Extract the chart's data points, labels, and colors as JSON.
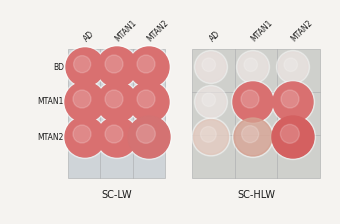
{
  "fig_width": 3.4,
  "fig_height": 2.24,
  "dpi": 100,
  "bg_color": "#f5f3f0",
  "panel_left_bg": "#cfd4d8",
  "panel_right_bg": "#cfd0cc",
  "col_labels_left": [
    "AD",
    "MTAN1",
    "MTAN2"
  ],
  "col_labels_right": [
    "AD",
    "MTAN1",
    "MTAN2"
  ],
  "row_labels": [
    "BD",
    "MTAN1",
    "MTAN2"
  ],
  "left_panel_label": "SC-LW",
  "right_panel_label": "SC-HLW",
  "cell_bg": "#e8e4de",
  "lw_dots": [
    [
      {
        "color": "#d97070",
        "alpha": 1.0,
        "size": 0.38
      },
      {
        "color": "#d97070",
        "alpha": 1.0,
        "size": 0.4
      },
      {
        "color": "#d97070",
        "alpha": 1.0,
        "size": 0.4
      }
    ],
    [
      {
        "color": "#d97070",
        "alpha": 1.0,
        "size": 0.4
      },
      {
        "color": "#d97070",
        "alpha": 1.0,
        "size": 0.4
      },
      {
        "color": "#d97070",
        "alpha": 1.0,
        "size": 0.4
      }
    ],
    [
      {
        "color": "#d97070",
        "alpha": 1.0,
        "size": 0.4
      },
      {
        "color": "#d97070",
        "alpha": 1.0,
        "size": 0.4
      },
      {
        "color": "#d47272",
        "alpha": 1.0,
        "size": 0.42
      }
    ]
  ],
  "hlw_dots": [
    [
      {
        "color": "#e8dbd8",
        "alpha": 0.5,
        "size": 0.3
      },
      {
        "color": "#e8dbd8",
        "alpha": 0.4,
        "size": 0.3
      },
      {
        "color": "#e8dbd8",
        "alpha": 0.4,
        "size": 0.3
      }
    ],
    [
      {
        "color": "#e8dbd8",
        "alpha": 0.4,
        "size": 0.3
      },
      {
        "color": "#d97070",
        "alpha": 1.0,
        "size": 0.4
      },
      {
        "color": "#d97070",
        "alpha": 1.0,
        "size": 0.4
      }
    ],
    [
      {
        "color": "#e0c4b8",
        "alpha": 0.7,
        "size": 0.35
      },
      {
        "color": "#d4a090",
        "alpha": 0.8,
        "size": 0.38
      },
      {
        "color": "#d46060",
        "alpha": 1.0,
        "size": 0.42
      }
    ]
  ],
  "col_label_fontsize": 5.5,
  "row_label_fontsize": 5.5,
  "panel_label_fontsize": 7.0,
  "col_label_rotation": 45,
  "grid_color": "#a8aaac",
  "grid_lw": 0.4
}
